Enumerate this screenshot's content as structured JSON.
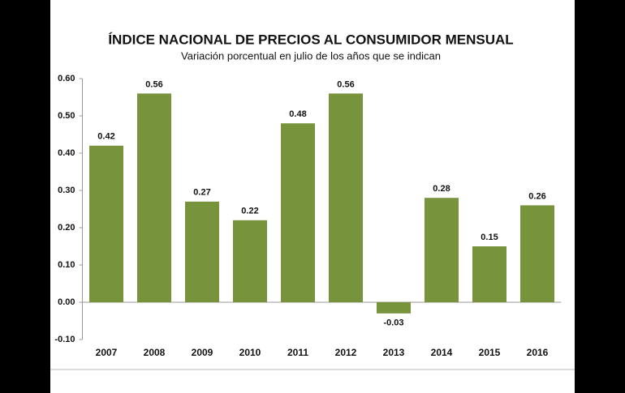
{
  "chart_data": {
    "type": "bar",
    "title": "ÍNDICE NACIONAL DE PRECIOS AL CONSUMIDOR MENSUAL",
    "subtitle": "Variación porcentual en julio de los años que se indican",
    "categories": [
      "2007",
      "2008",
      "2009",
      "2010",
      "2011",
      "2012",
      "2013",
      "2014",
      "2015",
      "2016"
    ],
    "values": [
      0.42,
      0.56,
      0.27,
      0.22,
      0.48,
      0.56,
      -0.03,
      0.28,
      0.15,
      0.26
    ],
    "color": "#77933c",
    "ylim": [
      -0.1,
      0.6
    ],
    "yticks": [
      {
        "value": -0.1,
        "label": "-0.10"
      },
      {
        "value": 0,
        "label": "0.00"
      },
      {
        "value": 0.1,
        "label": "0.10"
      },
      {
        "value": 0.2,
        "label": "0.20"
      },
      {
        "value": 0.3,
        "label": "0.30"
      },
      {
        "value": 0.4,
        "label": "0.40"
      },
      {
        "value": 0.5,
        "label": "0.50"
      },
      {
        "value": 0.6,
        "label": "0.60"
      }
    ],
    "grid": false
  }
}
